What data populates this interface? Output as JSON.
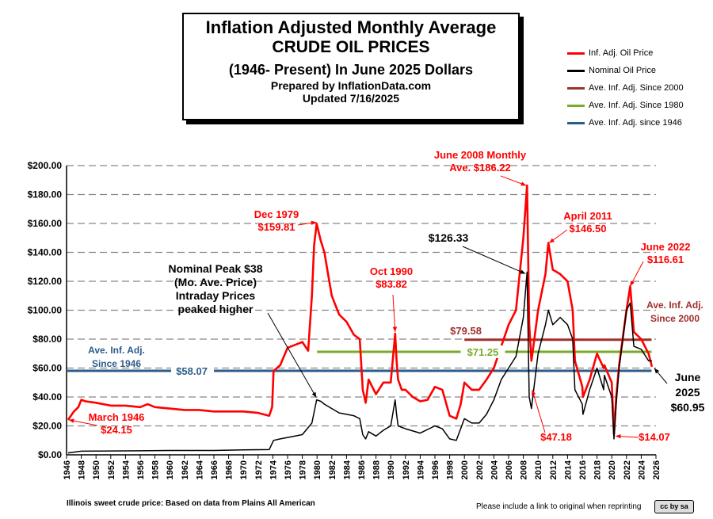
{
  "header": {
    "line1": "Inflation Adjusted Monthly Average",
    "line2": "CRUDE OIL PRICES",
    "line3": "(1946- Present) In June 2025 Dollars",
    "line4": "Prepared by InflationData.com",
    "line5": "Updated 7/16/2025"
  },
  "legend": [
    {
      "label": "Inf. Adj. Oil Price",
      "color": "#ff0000"
    },
    {
      "label": "Nominal Oil Price",
      "color": "#000000"
    },
    {
      "label": "Ave. Inf. Adj. Since 2000",
      "color": "#a0302c"
    },
    {
      "label": "Ave. Inf. Adj. Since 1980",
      "color": "#7aab2a"
    },
    {
      "label": "Ave. Inf. Adj. since 1946",
      "color": "#2e5c8a"
    }
  ],
  "footer": {
    "source": "Illinois sweet crude price: Based on data from Plains All American",
    "note": "Please include a link to original when reprinting",
    "license": "cc by sa"
  },
  "chart_data": {
    "type": "line",
    "title": "Inflation Adjusted Monthly Average CRUDE OIL PRICES",
    "ylim": [
      0,
      200
    ],
    "xlim": [
      1946,
      2026
    ],
    "grid": true,
    "y_ticks": [
      "$0.00",
      "$20.00",
      "$40.00",
      "$60.00",
      "$80.00",
      "$100.00",
      "$120.00",
      "$140.00",
      "$160.00",
      "$180.00",
      "$200.00"
    ],
    "x_ticks": [
      "1946",
      "1948",
      "1950",
      "1952",
      "1954",
      "1956",
      "1958",
      "1960",
      "1962",
      "1964",
      "1966",
      "1968",
      "1970",
      "1972",
      "1974",
      "1976",
      "1978",
      "1980",
      "1982",
      "1984",
      "1986",
      "1988",
      "1990",
      "1992",
      "1994",
      "1996",
      "1998",
      "2000",
      "2002",
      "2004",
      "2006",
      "2008",
      "2010",
      "2012",
      "2014",
      "2016",
      "2018",
      "2020",
      "2022",
      "2024",
      "2026"
    ],
    "series": [
      {
        "name": "Inf. Adj. Oil Price",
        "color": "#ff0000",
        "x": [
          1946.2,
          1947,
          1947.6,
          1948,
          1948.6,
          1950,
          1952,
          1954,
          1956,
          1957,
          1958,
          1960,
          1962,
          1964,
          1966,
          1968,
          1970,
          1972,
          1973.5,
          1973.9,
          1974.1,
          1975,
          1976,
          1977,
          1978,
          1978.8,
          1979.3,
          1979.6,
          1979.95,
          1980.5,
          1981,
          1981.5,
          1982,
          1983,
          1984,
          1985,
          1985.8,
          1986.2,
          1986.6,
          1987,
          1988,
          1989,
          1990,
          1990.6,
          1990.8,
          1991,
          1991.5,
          1992,
          1993,
          1994,
          1995,
          1996,
          1997,
          1998,
          1998.9,
          1999.5,
          2000,
          2001,
          2002,
          2003,
          2004,
          2005,
          2006,
          2007,
          2008,
          2008.5,
          2008.8,
          2009.1,
          2009.5,
          2010,
          2011,
          2011.4,
          2012,
          2013,
          2014,
          2014.7,
          2015,
          2016,
          2016.1,
          2017,
          2018,
          2018.9,
          2019,
          2020,
          2020.3,
          2020.6,
          2021,
          2022,
          2022.5,
          2023,
          2024,
          2024.5,
          2025,
          2025.45
        ],
        "values": [
          24.15,
          30,
          33,
          38,
          37,
          36,
          34,
          34,
          33,
          35,
          33,
          32,
          31,
          31,
          30,
          30,
          30,
          29,
          27,
          33,
          58,
          62,
          74,
          76,
          78,
          72,
          110,
          145,
          159.81,
          148,
          140,
          125,
          110,
          97,
          92,
          83,
          80,
          45,
          36,
          52,
          42,
          50,
          50,
          83.82,
          65,
          52,
          45,
          45,
          40,
          37,
          38,
          47,
          45,
          27,
          25,
          35,
          50,
          45,
          45,
          52,
          60,
          75,
          90,
          100,
          150,
          186.22,
          90,
          65,
          80,
          100,
          125,
          146.5,
          128,
          125,
          120,
          100,
          65,
          47.18,
          40,
          52,
          70,
          60,
          62,
          50,
          14.07,
          40,
          62,
          100,
          116.61,
          85,
          80,
          75,
          70,
          60.95
        ]
      },
      {
        "name": "Nominal Oil Price",
        "color": "#000000",
        "x": [
          1946.2,
          1948,
          1950,
          1956,
          1960,
          1966,
          1970,
          1973.5,
          1974.1,
          1975,
          1976,
          1978,
          1979.3,
          1979.95,
          1980.5,
          1981,
          1982,
          1983,
          1984,
          1985,
          1985.8,
          1986.2,
          1986.6,
          1987,
          1988,
          1989,
          1990,
          1990.6,
          1990.8,
          1991,
          1992,
          1994,
          1996,
          1997,
          1998,
          1998.9,
          2000,
          2001,
          2002,
          2003,
          2004,
          2005,
          2006,
          2007,
          2008,
          2008.5,
          2008.8,
          2009.1,
          2010,
          2011,
          2011.4,
          2012,
          2013,
          2014,
          2014.7,
          2015,
          2016,
          2016.1,
          2017,
          2018,
          2018.9,
          2019,
          2020,
          2020.3,
          2020.6,
          2021,
          2022,
          2022.5,
          2023,
          2024,
          2025,
          2025.45
        ],
        "values": [
          1.3,
          2.5,
          2.6,
          2.8,
          3.0,
          3.0,
          3.4,
          3.6,
          10,
          11,
          12,
          14,
          22,
          38,
          37,
          35,
          32,
          29,
          28,
          27,
          25,
          14,
          11,
          16,
          13,
          17,
          20,
          38,
          28,
          20,
          18,
          15,
          20,
          18,
          11,
          10,
          25,
          22,
          22,
          28,
          38,
          52,
          60,
          68,
          95,
          126.33,
          40,
          32,
          70,
          90,
          100,
          90,
          95,
          90,
          80,
          45,
          35,
          28,
          45,
          60,
          45,
          55,
          40,
          11,
          35,
          60,
          100,
          105,
          75,
          73,
          65,
          65
        ]
      }
    ],
    "reference_lines": [
      {
        "label": "$79.58",
        "value": 79.58,
        "from": 2000,
        "to": 2025.4,
        "color": "#a0302c"
      },
      {
        "label": "$71.25",
        "value": 71.25,
        "from": 1980,
        "to": 2025.4,
        "color": "#7aab2a"
      },
      {
        "label": "$58.07",
        "value": 58.07,
        "from": 1946,
        "to": 2025.4,
        "color": "#2e5c8a"
      }
    ],
    "annotations": [
      {
        "text": "March 1946\n$24.15",
        "color": "#ff0000"
      },
      {
        "text": "Dec 1979\n$159.81",
        "color": "#ff0000"
      },
      {
        "text": "Nominal Peak $38\n(Mo. Ave. Price)\nIntraday Prices\npeaked higher",
        "color": "#000000"
      },
      {
        "text": "Oct 1990\n$83.82",
        "color": "#ff0000"
      },
      {
        "text": "June 2008 Monthly\nAve. $186.22",
        "color": "#ff0000"
      },
      {
        "text": "$126.33",
        "color": "#000000"
      },
      {
        "text": "April 2011\n$146.50",
        "color": "#ff0000"
      },
      {
        "text": "June 2022\n$116.61",
        "color": "#ff0000"
      },
      {
        "text": "Ave. Inf. Adj.\nSince 2000",
        "color": "#a0302c"
      },
      {
        "text": "Ave. Inf. Adj.\nSince 1946",
        "color": "#2e5c8a"
      },
      {
        "text": "$47.18",
        "color": "#ff0000"
      },
      {
        "text": "$14.07",
        "color": "#ff0000"
      },
      {
        "text": "June\n2025\n$60.95",
        "color": "#000000"
      }
    ]
  }
}
